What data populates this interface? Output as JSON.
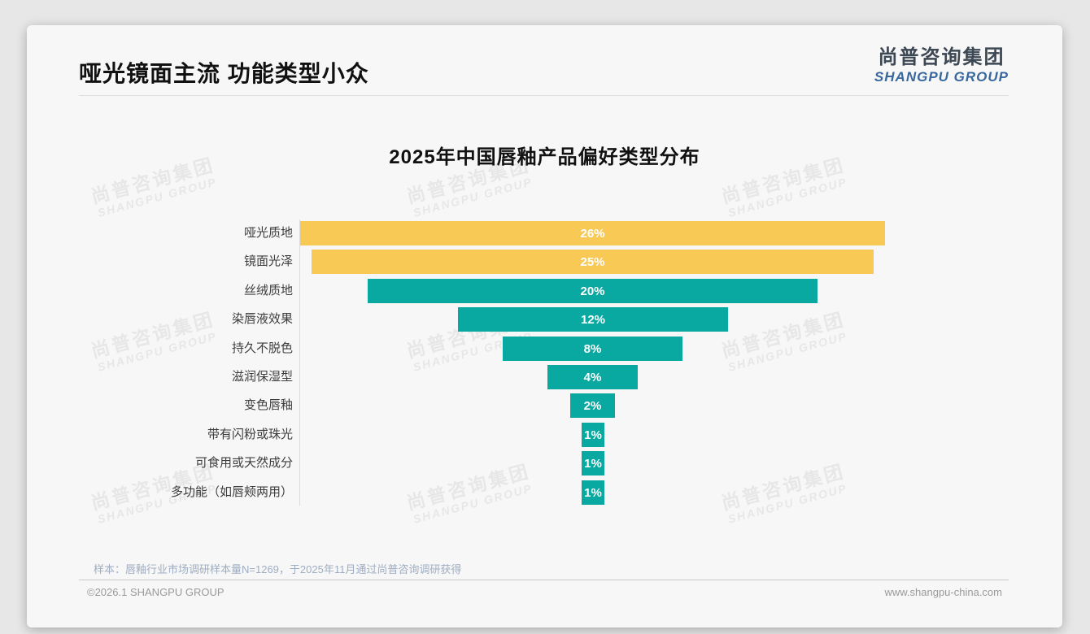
{
  "slide": {
    "title": "哑光镜面主流 功能类型小众",
    "source_note": "样本：唇釉行业市场调研样本量N=1269，于2025年11月通过尚普咨询调研获得",
    "footer_left": "©2026.1 SHANGPU GROUP",
    "footer_right": "www.shangpu-china.com"
  },
  "logo": {
    "cn": "尚普咨询集团",
    "en": "SHANGPU GROUP"
  },
  "watermark": {
    "cn": "尚普咨询集团",
    "en": "SHANGPU GROUP"
  },
  "chart_data": {
    "type": "bar",
    "variant": "horizontal-centered-funnel",
    "title": "2025年中国唇釉产品偏好类型分布",
    "categories": [
      "哑光质地",
      "镜面光泽",
      "丝绒质地",
      "染唇液效果",
      "持久不脱色",
      "滋润保湿型",
      "变色唇釉",
      "带有闪粉或珠光",
      "可食用或天然成分",
      "多功能（如唇颊两用）"
    ],
    "values": [
      26,
      25,
      20,
      12,
      8,
      4,
      2,
      1,
      1,
      1
    ],
    "value_labels": [
      "26%",
      "25%",
      "20%",
      "12%",
      "8%",
      "4%",
      "2%",
      "1%",
      "1%",
      "1%"
    ],
    "bar_colors": [
      "#F8C955",
      "#F8C955",
      "#09A8A1",
      "#09A8A1",
      "#09A8A1",
      "#09A8A1",
      "#09A8A1",
      "#09A8A1",
      "#09A8A1",
      "#09A8A1"
    ],
    "colors": {
      "highlight": "#F8C955",
      "default": "#09A8A1",
      "value_text": "#ffffff"
    },
    "xlim": [
      0,
      26
    ],
    "grid": false,
    "legend": false,
    "value_label_position": "inside-center"
  }
}
